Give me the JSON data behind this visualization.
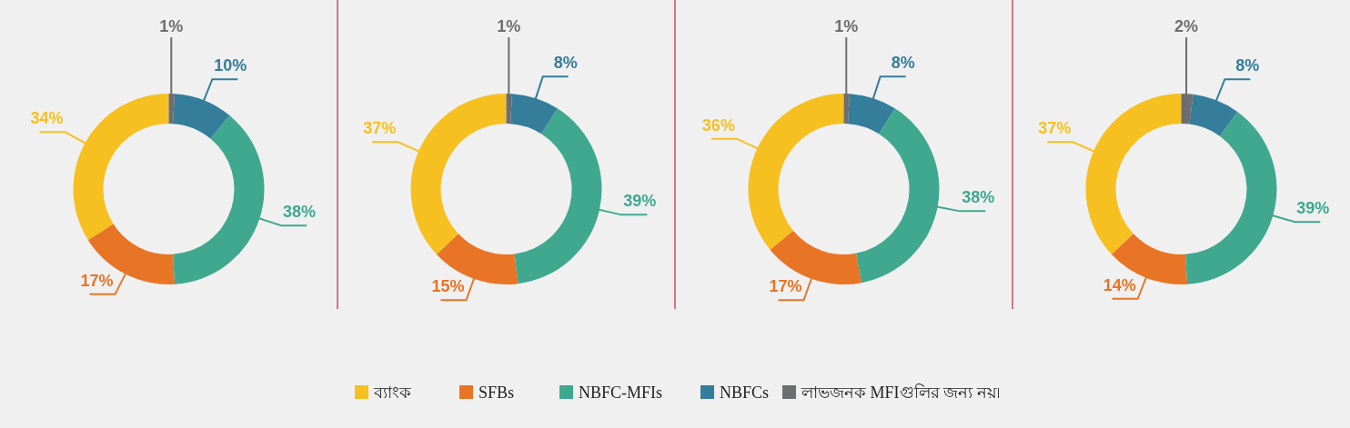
{
  "chart_data": [
    {
      "type": "donut",
      "categories": [
        "ব্যাংক",
        "SFBs",
        "NBFC-MFIs",
        "NBFCs",
        "লাভজনক MFIগুলির জন্য নয়৷"
      ],
      "values": [
        34,
        17,
        38,
        10,
        1
      ],
      "value_labels": [
        "34%",
        "17%",
        "38%",
        "10%",
        "1%"
      ],
      "colors": [
        "#f6c020",
        "#e87425",
        "#3fa88f",
        "#347d9b",
        "#6d6e70"
      ],
      "legend": "bottom"
    },
    {
      "type": "donut",
      "categories": [
        null,
        null,
        null,
        null,
        null
      ],
      "values": [
        37,
        15,
        39,
        8,
        1
      ],
      "value_labels": [
        "37%",
        "15%",
        "39%",
        "8%",
        "1%"
      ],
      "colors": [
        "#f6c020",
        "#e87425",
        "#3fa88f",
        "#347d9b",
        "#6d6e70"
      ]
    },
    {
      "type": "donut",
      "categories": [
        null,
        null,
        null,
        null,
        null
      ],
      "values": [
        36,
        17,
        38,
        8,
        1
      ],
      "value_labels": [
        "36%",
        "17%",
        "38%",
        "8%",
        "1%"
      ],
      "colors": [
        "#f6c020",
        "#e87425",
        "#3fa88f",
        "#347d9b",
        "#6d6e70"
      ]
    },
    {
      "type": "donut",
      "categories": [
        null,
        null,
        null,
        null,
        null
      ],
      "values": [
        37,
        14,
        39,
        8,
        2
      ],
      "value_labels": [
        "37%",
        "14%",
        "39%",
        "8%",
        "2%"
      ],
      "colors": [
        "#f6c020",
        "#e87425",
        "#3fa88f",
        "#347d9b",
        "#6d6e70"
      ]
    }
  ]
}
